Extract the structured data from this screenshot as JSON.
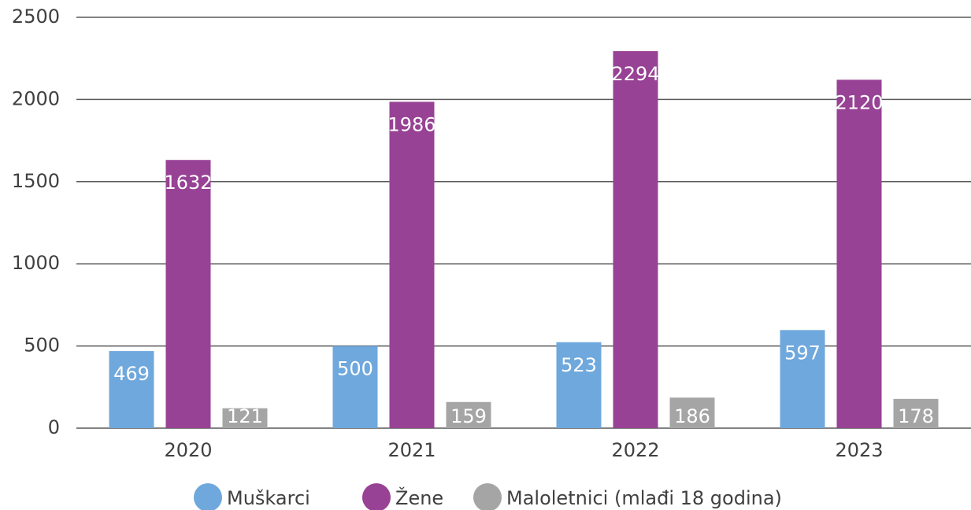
{
  "chart_data": {
    "type": "bar",
    "categories": [
      "2020",
      "2021",
      "2022",
      "2023"
    ],
    "series": [
      {
        "name": "Muškarci",
        "color": "#6fa8dc",
        "values": [
          469,
          500,
          523,
          597
        ]
      },
      {
        "name": "Žene",
        "color": "#974294",
        "values": [
          1632,
          1986,
          2294,
          2120
        ]
      },
      {
        "name": "Maloletnici (mlađi 18 godina)",
        "color": "#a5a5a5",
        "values": [
          121,
          159,
          186,
          178
        ]
      }
    ],
    "ylim": [
      0,
      2500
    ],
    "yticks": [
      0,
      500,
      1000,
      1500,
      2000,
      2500
    ],
    "grid": true,
    "legend": "bottom"
  }
}
